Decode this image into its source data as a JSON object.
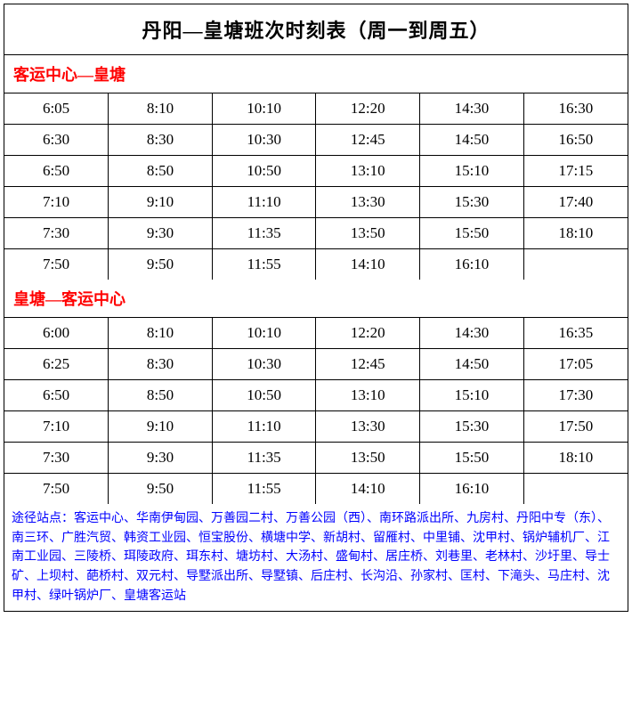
{
  "title": "丹阳—皇塘班次时刻表（周一到周五）",
  "section1": {
    "header": "客运中心—皇塘",
    "rows": [
      [
        "6:05",
        "8:10",
        "10:10",
        "12:20",
        "14:30",
        "16:30"
      ],
      [
        "6:30",
        "8:30",
        "10:30",
        "12:45",
        "14:50",
        "16:50"
      ],
      [
        "6:50",
        "8:50",
        "10:50",
        "13:10",
        "15:10",
        "17:15"
      ],
      [
        "7:10",
        "9:10",
        "11:10",
        "13:30",
        "15:30",
        "17:40"
      ],
      [
        "7:30",
        "9:30",
        "11:35",
        "13:50",
        "15:50",
        "18:10"
      ],
      [
        "7:50",
        "9:50",
        "11:55",
        "14:10",
        "16:10",
        ""
      ]
    ]
  },
  "section2": {
    "header": "皇塘—客运中心",
    "rows": [
      [
        "6:00",
        "8:10",
        "10:10",
        "12:20",
        "14:30",
        "16:35"
      ],
      [
        "6:25",
        "8:30",
        "10:30",
        "12:45",
        "14:50",
        "17:05"
      ],
      [
        "6:50",
        "8:50",
        "10:50",
        "13:10",
        "15:10",
        "17:30"
      ],
      [
        "7:10",
        "9:10",
        "11:10",
        "13:30",
        "15:30",
        "17:50"
      ],
      [
        "7:30",
        "9:30",
        "11:35",
        "13:50",
        "15:50",
        "18:10"
      ],
      [
        "7:50",
        "9:50",
        "11:55",
        "14:10",
        "16:10",
        ""
      ]
    ]
  },
  "footer": "途径站点：客运中心、华南伊甸园、万善园二村、万善公园（西）、南环路派出所、九房村、丹阳中专（东）、南三环、广胜汽贸、韩资工业园、恒宝股份、横塘中学、新胡村、留雁村、中里铺、沈甲村、锅炉辅机厂、江南工业园、三陵桥、珥陵政府、珥东村、塘坊村、大汤村、盛甸村、居庄桥、刘巷里、老林村、沙圩里、导士矿、上坝村、葩桥村、双元村、导墅派出所、导墅镇、后庄村、长沟沿、孙家村、匡村、下滝头、马庄村、沈甲村、绿叶锅炉厂、皇塘客运站",
  "colors": {
    "header_text": "#ff0000",
    "footer_text": "#0000ff",
    "border": "#000000",
    "background": "#ffffff"
  }
}
